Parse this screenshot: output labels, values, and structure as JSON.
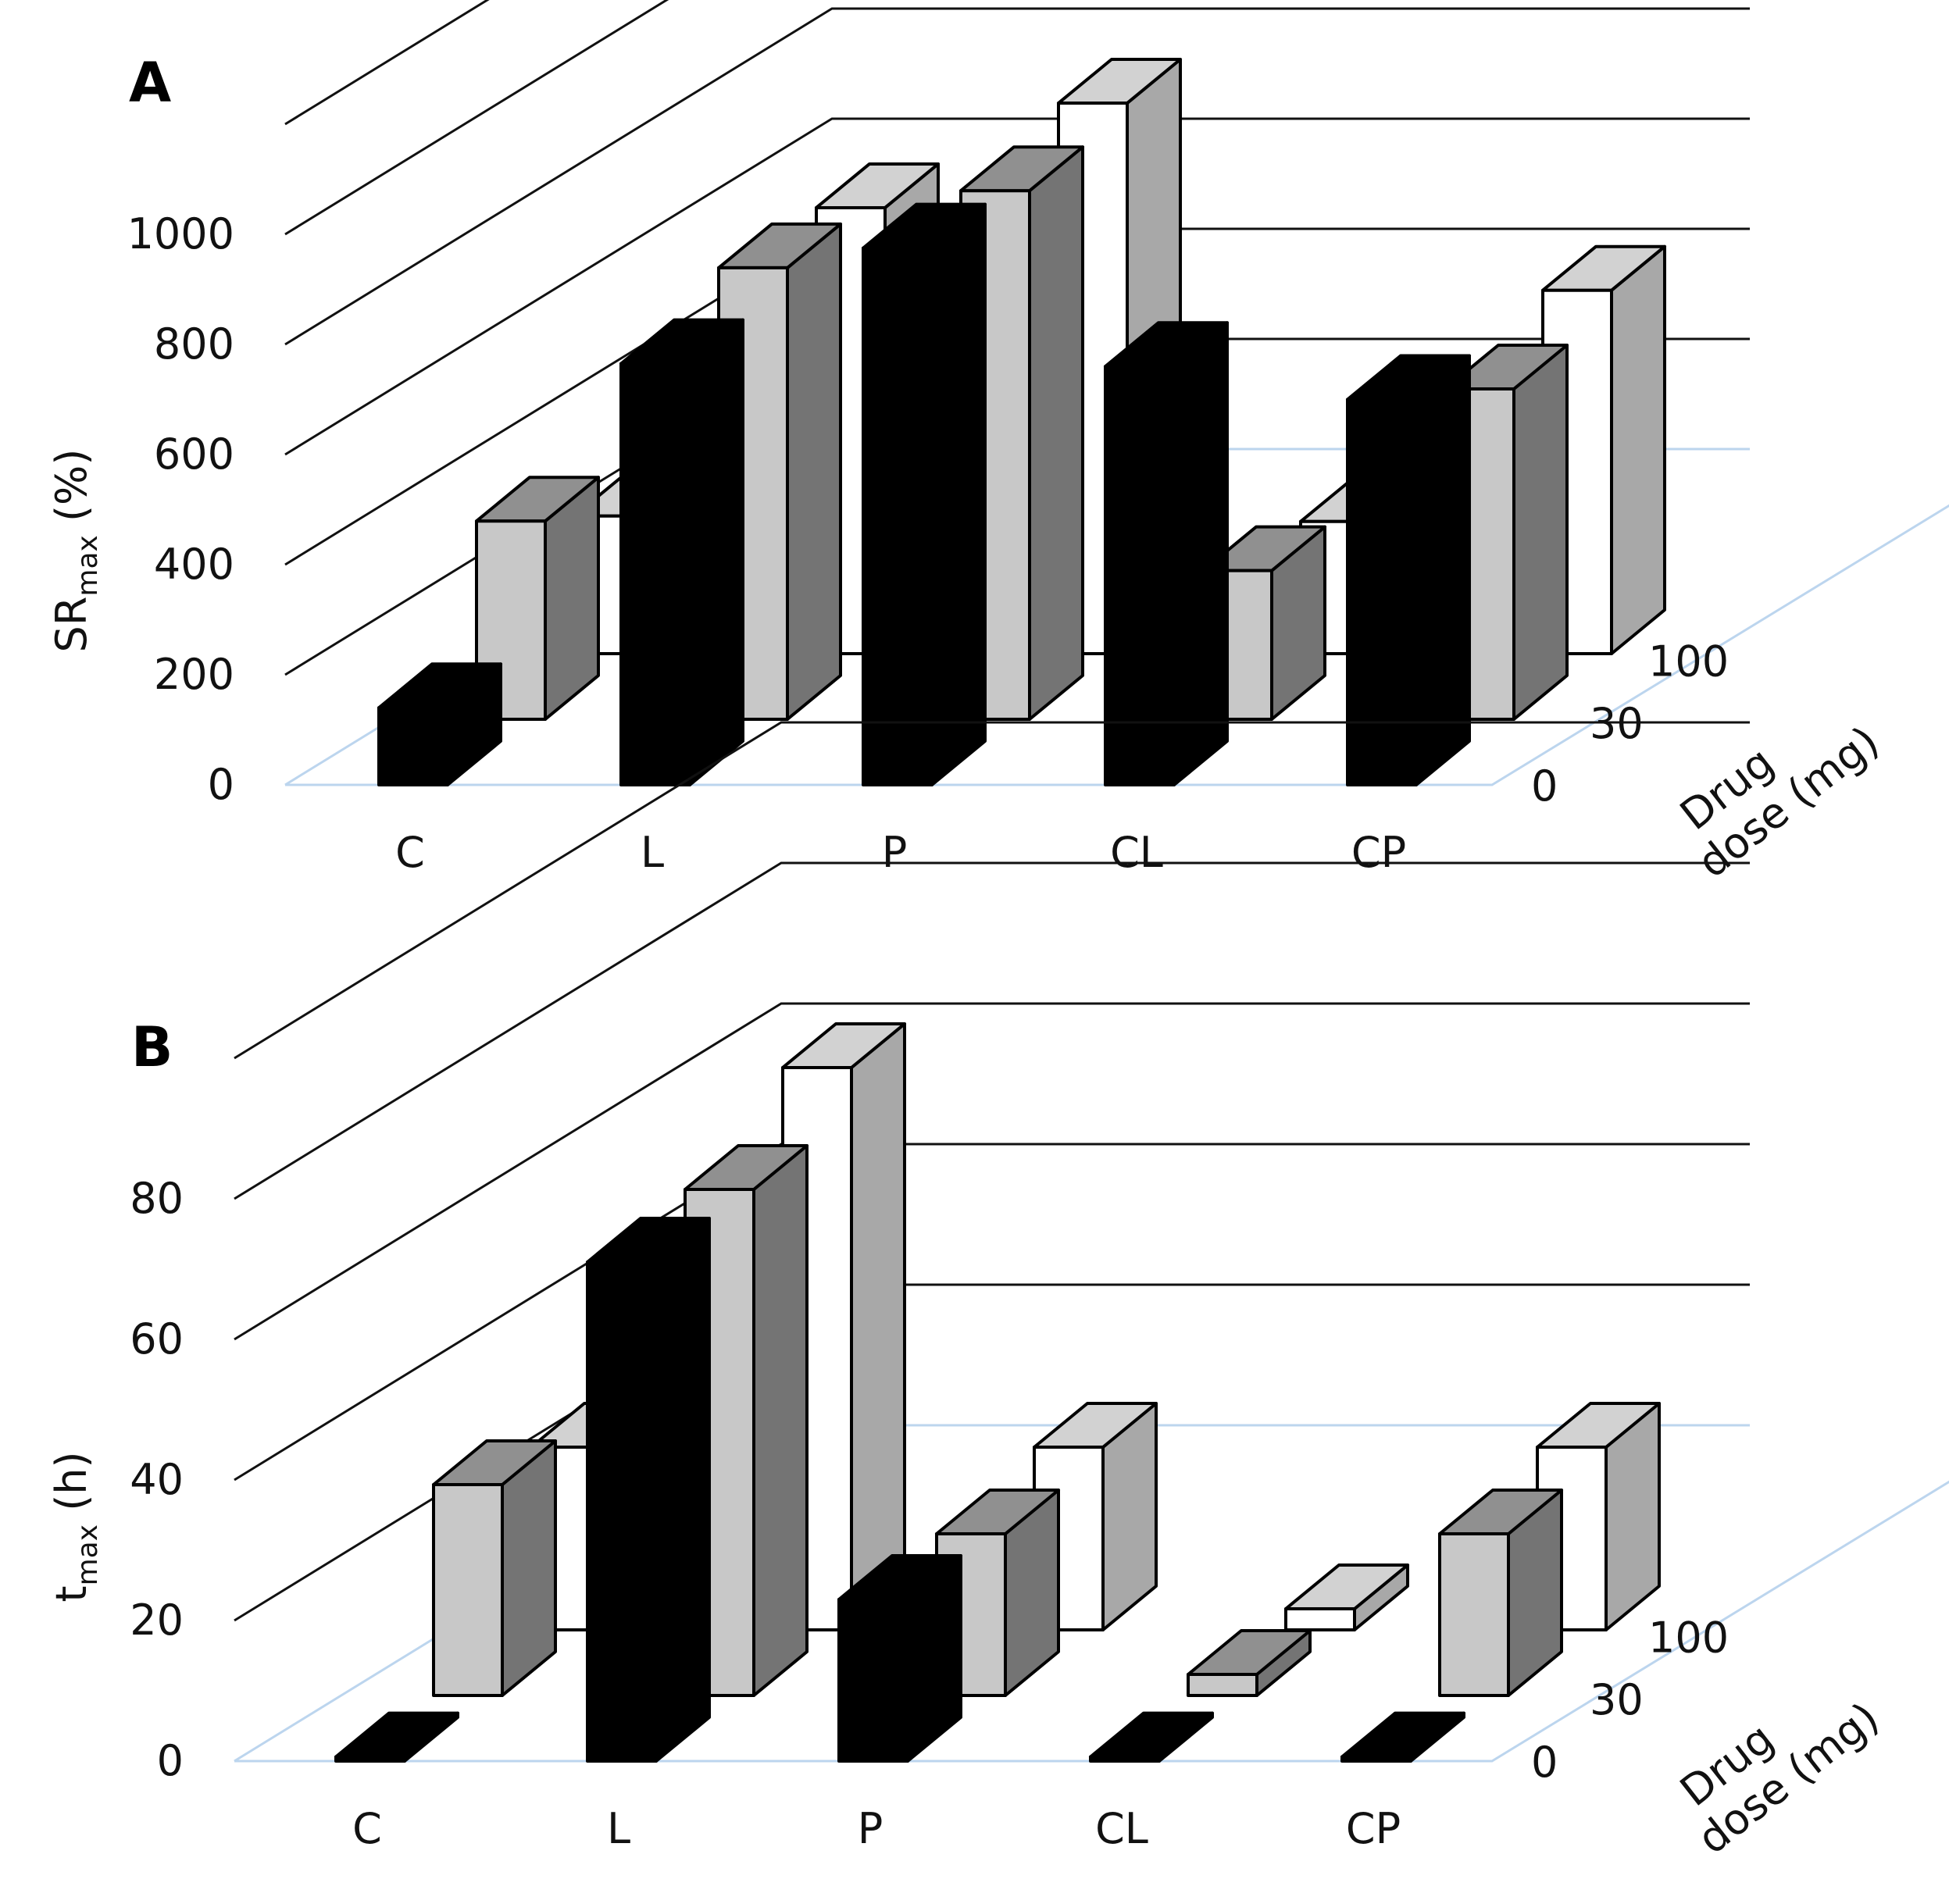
{
  "chart_data": [
    {
      "panel": "A",
      "type": "bar",
      "projection": "3d",
      "ylabel": {
        "main": "SR",
        "sub": "max",
        "suffix": " (%)"
      },
      "yticks": [
        0,
        200,
        400,
        600,
        800,
        1000
      ],
      "ylim": [
        0,
        1200
      ],
      "categories": [
        "C",
        "L",
        "P",
        "CL",
        "CP"
      ],
      "depth_axis": {
        "label": "Drug dose (mg)",
        "label_lines": [
          "Drug",
          "dose (mg)"
        ],
        "ticks": [
          "0",
          "30",
          "100"
        ]
      },
      "series": [
        {
          "name": "0",
          "color": "#000000",
          "values": [
            140,
            765,
            975,
            760,
            700
          ]
        },
        {
          "name": "30",
          "color": "#c8c8c8",
          "values": [
            360,
            820,
            960,
            270,
            600
          ]
        },
        {
          "name": "100",
          "color": "#ffffff",
          "values": [
            250,
            810,
            1000,
            240,
            660
          ]
        }
      ]
    },
    {
      "panel": "B",
      "type": "bar",
      "projection": "3d",
      "ylabel": {
        "main": "t",
        "sub": "max",
        "suffix": " (h)"
      },
      "yticks": [
        0,
        20,
        40,
        60,
        80
      ],
      "ylim": [
        0,
        100
      ],
      "categories": [
        "C",
        "L",
        "P",
        "CL",
        "CP"
      ],
      "depth_axis": {
        "label": "Drug dose (mg)",
        "label_lines": [
          "Drug",
          "dose (mg)"
        ],
        "ticks": [
          "0",
          "30",
          "100"
        ]
      },
      "series": [
        {
          "name": "0",
          "color": "#000000",
          "values": [
            0,
            71,
            23,
            0,
            0
          ]
        },
        {
          "name": "30",
          "color": "#c8c8c8",
          "values": [
            30,
            72,
            23,
            3,
            23
          ]
        },
        {
          "name": "100",
          "color": "#ffffff",
          "values": [
            26,
            80,
            26,
            3,
            26
          ]
        }
      ]
    }
  ]
}
